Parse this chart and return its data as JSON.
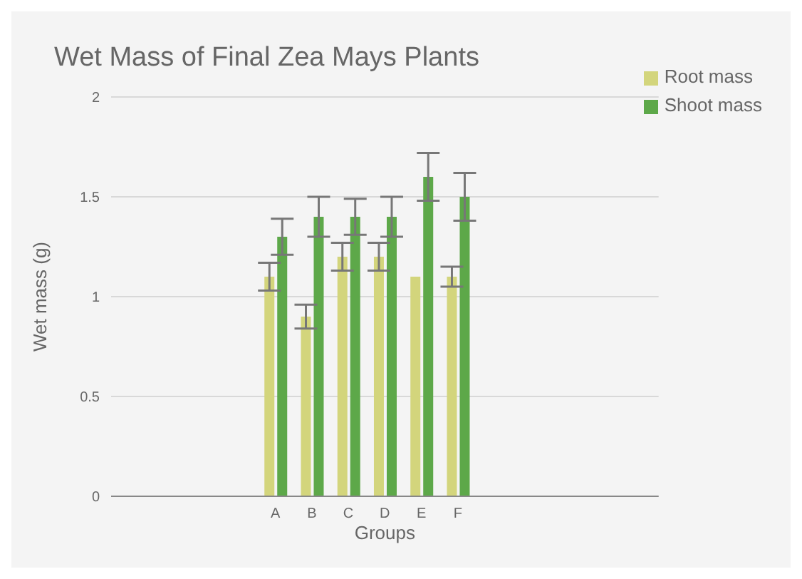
{
  "chart_data": {
    "type": "bar",
    "title": "Wet Mass of Final Zea Mays Plants",
    "xlabel": "Groups",
    "ylabel": "Wet mass (g)",
    "categories": [
      null,
      null,
      null,
      null,
      "A",
      "B",
      "C",
      "D",
      "E",
      "F",
      null,
      null,
      null,
      null,
      null
    ],
    "series": [
      {
        "name": "Root mass",
        "color": "#d3d57c",
        "values": [
          null,
          null,
          null,
          null,
          1.1,
          0.9,
          1.2,
          1.2,
          1.1,
          1.1,
          null,
          null,
          null,
          null,
          null
        ],
        "errors": [
          null,
          null,
          null,
          null,
          0.07,
          0.06,
          0.07,
          0.07,
          null,
          0.05,
          null,
          null,
          null,
          null,
          null
        ]
      },
      {
        "name": "Shoot mass",
        "color": "#5da849",
        "values": [
          null,
          null,
          null,
          null,
          1.3,
          1.4,
          1.4,
          1.4,
          1.6,
          1.5,
          null,
          null,
          null,
          null,
          null
        ],
        "errors": [
          null,
          null,
          null,
          null,
          0.09,
          0.1,
          0.09,
          0.1,
          0.12,
          0.12,
          null,
          null,
          null,
          null,
          null
        ]
      }
    ],
    "ylim": [
      0,
      2
    ],
    "yticks": [
      0,
      0.5,
      1,
      1.5,
      2
    ],
    "grid": "y",
    "legend": "top right"
  }
}
